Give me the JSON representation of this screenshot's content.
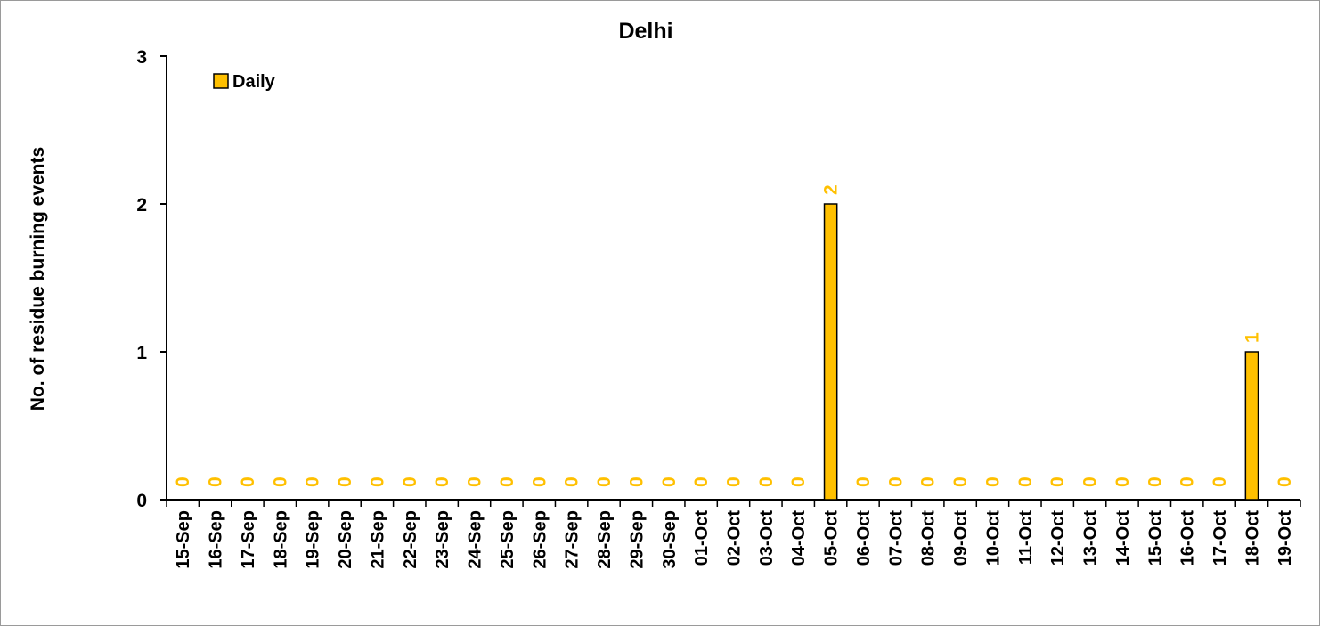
{
  "chart_data": {
    "type": "bar",
    "title": "Delhi",
    "ylabel": "No. of residue burning events",
    "xlabel": "",
    "ylim": [
      0,
      3
    ],
    "yticks": [
      0,
      1,
      2,
      3
    ],
    "grid": false,
    "legend_position": "top-left",
    "categories": [
      "15-Sep",
      "16-Sep",
      "17-Sep",
      "18-Sep",
      "19-Sep",
      "20-Sep",
      "21-Sep",
      "22-Sep",
      "23-Sep",
      "24-Sep",
      "25-Sep",
      "26-Sep",
      "27-Sep",
      "28-Sep",
      "29-Sep",
      "30-Sep",
      "01-Oct",
      "02-Oct",
      "03-Oct",
      "04-Oct",
      "05-Oct",
      "06-Oct",
      "07-Oct",
      "08-Oct",
      "09-Oct",
      "10-Oct",
      "11-Oct",
      "12-Oct",
      "13-Oct",
      "14-Oct",
      "15-Oct",
      "16-Oct",
      "17-Oct",
      "18-Oct",
      "19-Oct"
    ],
    "series": [
      {
        "name": "Daily",
        "color": "#FFC000",
        "values": [
          0,
          0,
          0,
          0,
          0,
          0,
          0,
          0,
          0,
          0,
          0,
          0,
          0,
          0,
          0,
          0,
          0,
          0,
          0,
          0,
          2,
          0,
          0,
          0,
          0,
          0,
          0,
          0,
          0,
          0,
          0,
          0,
          0,
          1,
          0
        ]
      }
    ]
  }
}
